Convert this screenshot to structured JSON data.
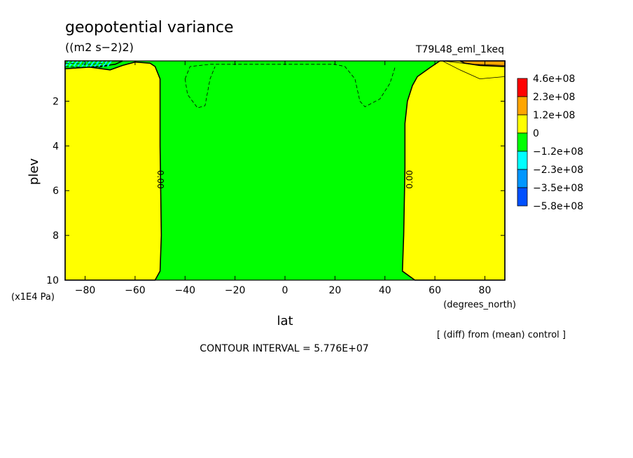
{
  "chart_data": {
    "type": "contour",
    "title": "geopotential variance",
    "units": "((m2 s−2)2)",
    "run_label": "T79L48_eml_1keq",
    "xlabel": "lat",
    "x_units": "(degrees_north)",
    "ylabel": "plev",
    "y_units": "(x1E4 Pa)",
    "xlim": [
      -88,
      88
    ],
    "ylim": [
      0.2,
      10
    ],
    "y_inverted": true,
    "x_ticks": [
      -80,
      -60,
      -40,
      -20,
      0,
      20,
      40,
      60,
      80
    ],
    "x_tick_labels": [
      "−80",
      "−60",
      "−40",
      "−20",
      "0",
      "20",
      "40",
      "60",
      "80"
    ],
    "y_ticks": [
      2,
      4,
      6,
      8,
      10
    ],
    "y_tick_labels": [
      "2",
      "4",
      "6",
      "8",
      "10"
    ],
    "contour_interval_text": "CONTOUR INTERVAL = 5.776E+07",
    "diff_note": "[ (diff) from (mean) control ]",
    "contour_labels": [
      {
        "lat": -50,
        "plev": 5.5,
        "text": "0.00",
        "rotate": 90
      },
      {
        "lat": 50,
        "plev": 5.5,
        "text": "0.00",
        "rotate": -90
      }
    ],
    "legend": [
      {
        "label": "4.6e+08",
        "color": "#ff0000"
      },
      {
        "label": "2.3e+08",
        "color": "#ffa500"
      },
      {
        "label": "1.2e+08",
        "color": "#ffff00"
      },
      {
        "label": "0",
        "color": "#00ff00"
      },
      {
        "label": "−1.2e+08",
        "color": "#00ffff"
      },
      {
        "label": "−2.3e+08",
        "color": "#0096ff"
      },
      {
        "label": "−3.5e+08",
        "color": "#0050ff"
      },
      {
        "label": "−5.8e+08",
        "color": ""
      }
    ],
    "regions": [
      {
        "name": "southern-positive",
        "color": "#ffff00",
        "points": [
          [
            -88,
            10
          ],
          [
            -88,
            0.4
          ],
          [
            -80,
            0.45
          ],
          [
            -70,
            0.6
          ],
          [
            -65,
            0.4
          ],
          [
            -60,
            0.25
          ],
          [
            -54,
            0.3
          ],
          [
            -52,
            0.45
          ],
          [
            -50,
            1
          ],
          [
            -50,
            4
          ],
          [
            -49.5,
            8
          ],
          [
            -50,
            9.6
          ],
          [
            -52,
            10
          ]
        ]
      },
      {
        "name": "southern-polar-negative",
        "color": "#00ff00",
        "points": [
          [
            -88,
            0.2
          ],
          [
            -65,
            0.2
          ],
          [
            -68,
            0.35
          ],
          [
            -75,
            0.45
          ],
          [
            -88,
            0.55
          ]
        ]
      },
      {
        "name": "northern-positive",
        "color": "#ffff00",
        "points": [
          [
            88,
            10
          ],
          [
            88,
            0.2
          ],
          [
            66,
            0.2
          ],
          [
            62,
            0.2
          ],
          [
            58,
            0.5
          ],
          [
            53,
            0.9
          ],
          [
            51,
            1.3
          ],
          [
            49,
            2
          ],
          [
            48,
            3
          ],
          [
            48,
            5
          ],
          [
            47.5,
            8
          ],
          [
            47,
            9.6
          ],
          [
            52,
            10
          ]
        ]
      },
      {
        "name": "northern-upper-orange",
        "color": "#ffa500",
        "points": [
          [
            70,
            0.2
          ],
          [
            88,
            0.2
          ],
          [
            88,
            0.45
          ],
          [
            78,
            0.4
          ],
          [
            72,
            0.3
          ]
        ]
      }
    ],
    "dashed_contours": [
      [
        [
          -40,
          1
        ],
        [
          -38,
          0.45
        ],
        [
          -30,
          0.35
        ],
        [
          20,
          0.35
        ],
        [
          24,
          0.45
        ],
        [
          28,
          1
        ],
        [
          30,
          2
        ],
        [
          32,
          2.25
        ],
        [
          38,
          1.9
        ],
        [
          42,
          1.2
        ],
        [
          44,
          0.5
        ]
      ],
      [
        [
          -40,
          1
        ],
        [
          -39,
          1.7
        ],
        [
          -35,
          2.3
        ],
        [
          -32,
          2.2
        ],
        [
          -30,
          1
        ],
        [
          -28,
          0.45
        ]
      ],
      [
        [
          -88,
          0.3
        ],
        [
          -78,
          0.35
        ],
        [
          -72,
          0.3
        ]
      ],
      [
        [
          -88,
          0.45
        ],
        [
          -75,
          0.5
        ],
        [
          -70,
          0.4
        ]
      ]
    ],
    "solid_contours": [
      [
        [
          63,
          0.2
        ],
        [
          70,
          0.6
        ],
        [
          78,
          1
        ],
        [
          88,
          0.9
        ]
      ],
      [
        [
          63,
          0.2
        ],
        [
          75,
          0.35
        ],
        [
          88,
          0.4
        ]
      ]
    ],
    "hatch": {
      "color": "#00ffff",
      "lat": [
        -88,
        -70
      ],
      "plev": [
        0.2,
        0.45
      ]
    }
  }
}
